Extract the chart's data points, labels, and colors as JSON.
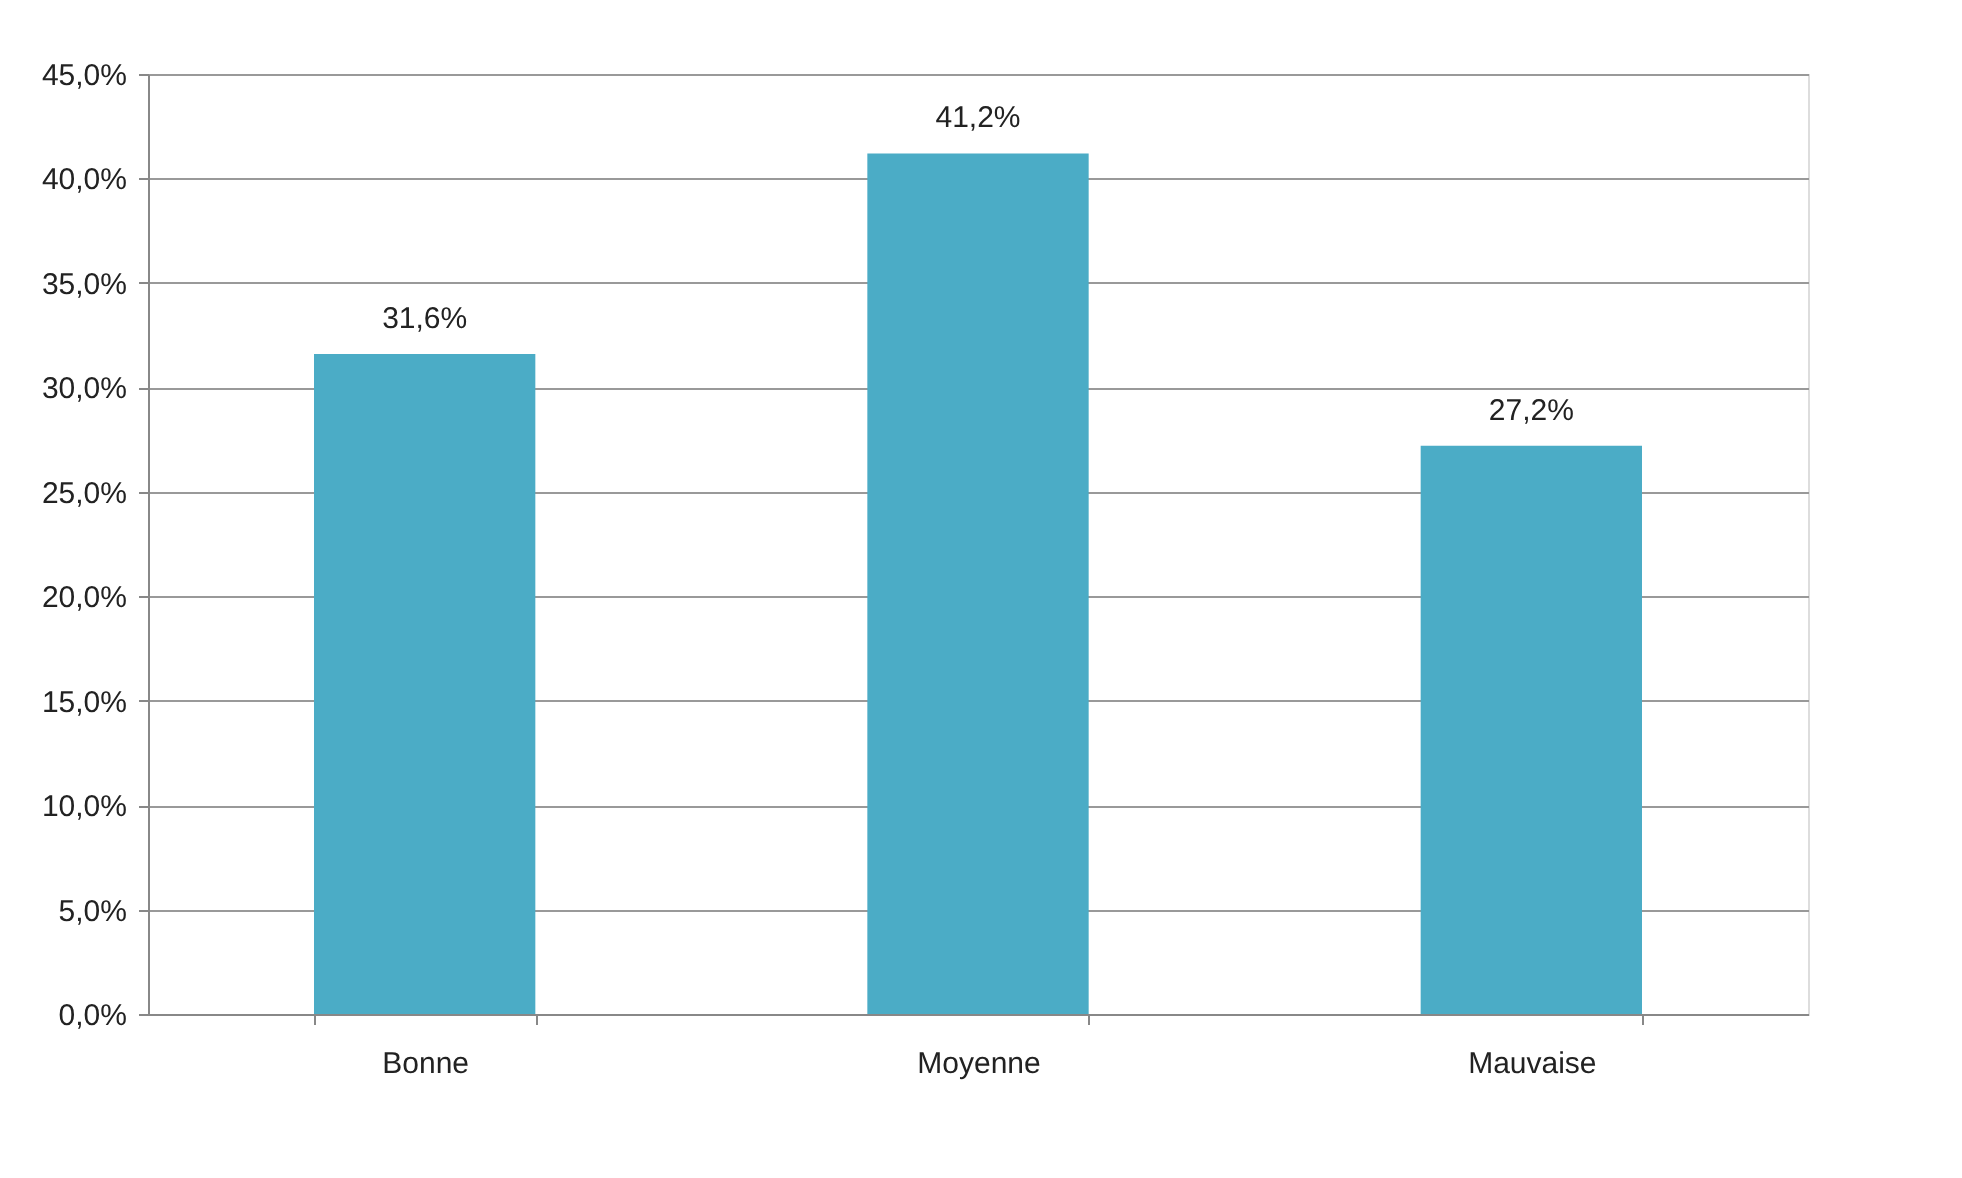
{
  "chart_data": {
    "type": "bar",
    "categories": [
      "Bonne",
      "Moyenne",
      "Mauvaise"
    ],
    "values": [
      31.6,
      41.2,
      27.2
    ],
    "value_labels": [
      "31,6%",
      "41,2%",
      "27,2%"
    ],
    "color": "#4bacc6",
    "ylim": [
      0,
      45
    ],
    "yticks": [
      {
        "value": 0,
        "label": "0,0%"
      },
      {
        "value": 5,
        "label": "5,0%"
      },
      {
        "value": 10,
        "label": "10,0%"
      },
      {
        "value": 15,
        "label": "15,0%"
      },
      {
        "value": 20,
        "label": "20,0%"
      },
      {
        "value": 25,
        "label": "25,0%"
      },
      {
        "value": 30,
        "label": "30,0%"
      },
      {
        "value": 35,
        "label": "35,0%"
      },
      {
        "value": 40,
        "label": "40,0%"
      },
      {
        "value": 45,
        "label": "45,0%"
      }
    ],
    "grid": "y"
  }
}
